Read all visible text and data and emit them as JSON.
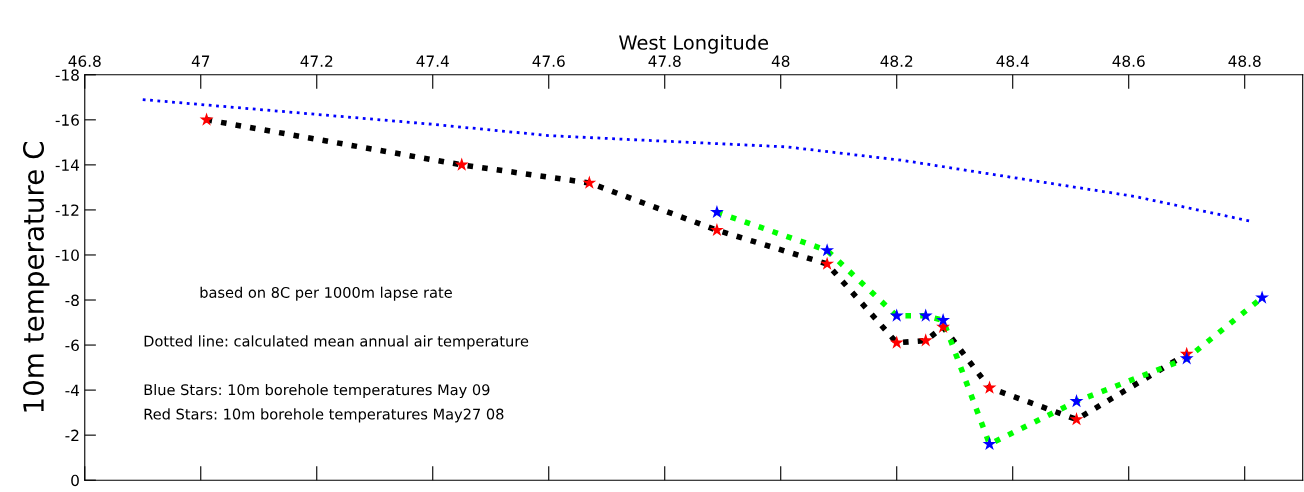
{
  "chart_data": {
    "type": "line",
    "xlabel": "West Longitude",
    "ylabel": "10m temperature C",
    "xlim": [
      46.8,
      48.9
    ],
    "xticks": [
      46.8,
      47,
      47.2,
      47.4,
      47.6,
      47.8,
      48,
      48.2,
      48.4,
      48.6,
      48.8
    ],
    "ylim": [
      0,
      -18
    ],
    "yticks": [
      0,
      -2,
      -4,
      -6,
      -8,
      -10,
      -12,
      -14,
      -16,
      -18
    ],
    "grid": false,
    "legend": false,
    "series": [
      {
        "color": "#0000ff",
        "line_style": "dotted",
        "marker": "none",
        "x": [
          46.9,
          47.4,
          47.6,
          47.76,
          48.01,
          48.21,
          48.41,
          48.61,
          48.81
        ],
        "values": [
          -16.9,
          -15.8,
          -15.3,
          -15.1,
          -14.8,
          -14.2,
          -13.4,
          -12.6,
          -11.5
        ]
      },
      {
        "color": "#000000",
        "line_style": "dotted",
        "marker": "none",
        "x": [
          47.01,
          47.45,
          47.67,
          47.89,
          48.08,
          48.2,
          48.25,
          48.28,
          48.36,
          48.51,
          48.7
        ],
        "values": [
          -16.0,
          -14.0,
          -13.2,
          -11.1,
          -9.6,
          -6.1,
          -6.2,
          -6.8,
          -4.1,
          -2.7,
          -5.6
        ]
      },
      {
        "color": "#00ff00",
        "line_style": "dotted",
        "marker": "none",
        "x": [
          47.89,
          48.08,
          48.2,
          48.25,
          48.28,
          48.36,
          48.51,
          48.7,
          48.83
        ],
        "values": [
          -11.9,
          -10.2,
          -7.3,
          -7.3,
          -7.1,
          -1.6,
          -3.5,
          -5.4,
          -8.1
        ]
      },
      {
        "type": "scatter",
        "color": "#ff0000",
        "marker": "star",
        "x": [
          47.01,
          47.45,
          47.67,
          47.89,
          48.08,
          48.2,
          48.25,
          48.28,
          48.36,
          48.51,
          48.7
        ],
        "values": [
          -16.0,
          -14.0,
          -13.2,
          -11.1,
          -9.6,
          -6.1,
          -6.2,
          -6.8,
          -4.1,
          -2.7,
          -5.6
        ]
      },
      {
        "type": "scatter",
        "color": "#0000ff",
        "marker": "star",
        "x": [
          47.89,
          48.08,
          48.2,
          48.25,
          48.28,
          48.36,
          48.51,
          48.7,
          48.83
        ],
        "values": [
          -11.9,
          -10.2,
          -7.3,
          -7.3,
          -7.1,
          -1.6,
          -3.5,
          -5.4,
          -8.1
        ]
      }
    ],
    "annotations": [
      "based on 8C per 1000m lapse rate",
      "Dotted line: calculated mean annual air temperature",
      "Blue Stars: 10m borehole temperatures May 09",
      "Red Stars: 10m borehole temperatures May27 08"
    ]
  }
}
